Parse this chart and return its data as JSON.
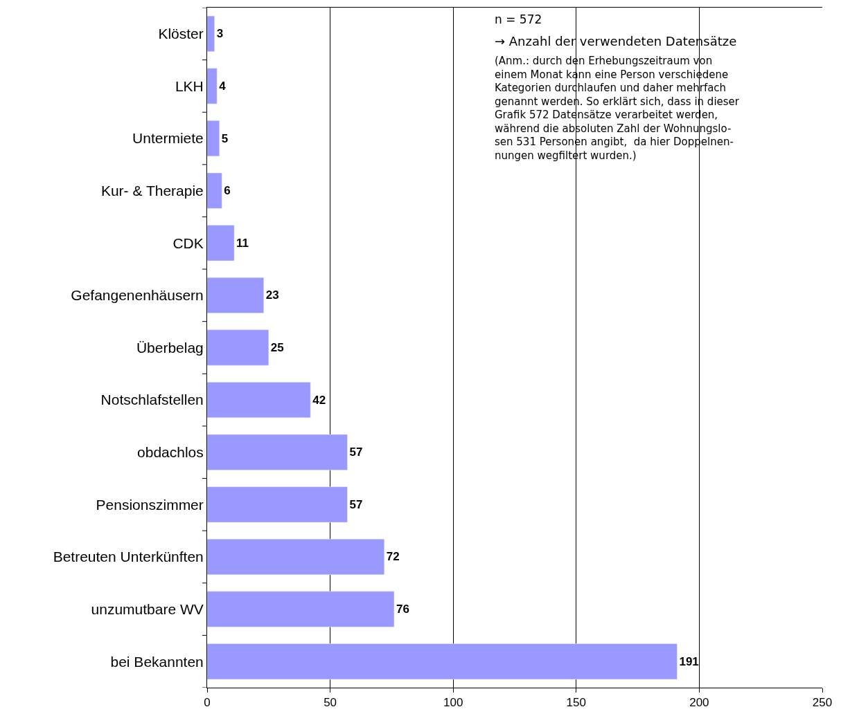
{
  "chart_data": {
    "type": "bar",
    "orientation": "horizontal",
    "categories": [
      "Klöster",
      "LKH",
      "Untermiete",
      "Kur- & Therapie",
      "CDK",
      "Gefangenenhäusern",
      "Überbelag",
      "Notschlafstellen",
      "obdachlos",
      "Pensionszimmer",
      "Betreuten Unterkünften",
      "unzumutbare WV",
      "bei Bekannten"
    ],
    "values": [
      3,
      4,
      5,
      6,
      11,
      23,
      25,
      42,
      57,
      57,
      72,
      76,
      191
    ],
    "color": "#9999ff",
    "xlim": [
      0,
      250
    ],
    "xticks": [
      0,
      50,
      100,
      150,
      200,
      250
    ],
    "grid": "x",
    "data_labels": true,
    "annotations": [
      "n = 572",
      "→ Anzahl der verwendeten Datensätze",
      "(Anm.: durch den Erhebungszeitraum von\neinem Monat kann eine Person verschiedene\nKategorien durchlaufen und daher mehrfach\ngenannt werden. So erklärt sich, dass in dieser\nGrafik 572 Datensätze verarbeitet werden,\nwährend die absoluten Zahl der Wohnungslo-\nsen 531 Personen angibt,  da hier Doppelnen-\nnungen wegfiltert wurden.)"
    ]
  }
}
